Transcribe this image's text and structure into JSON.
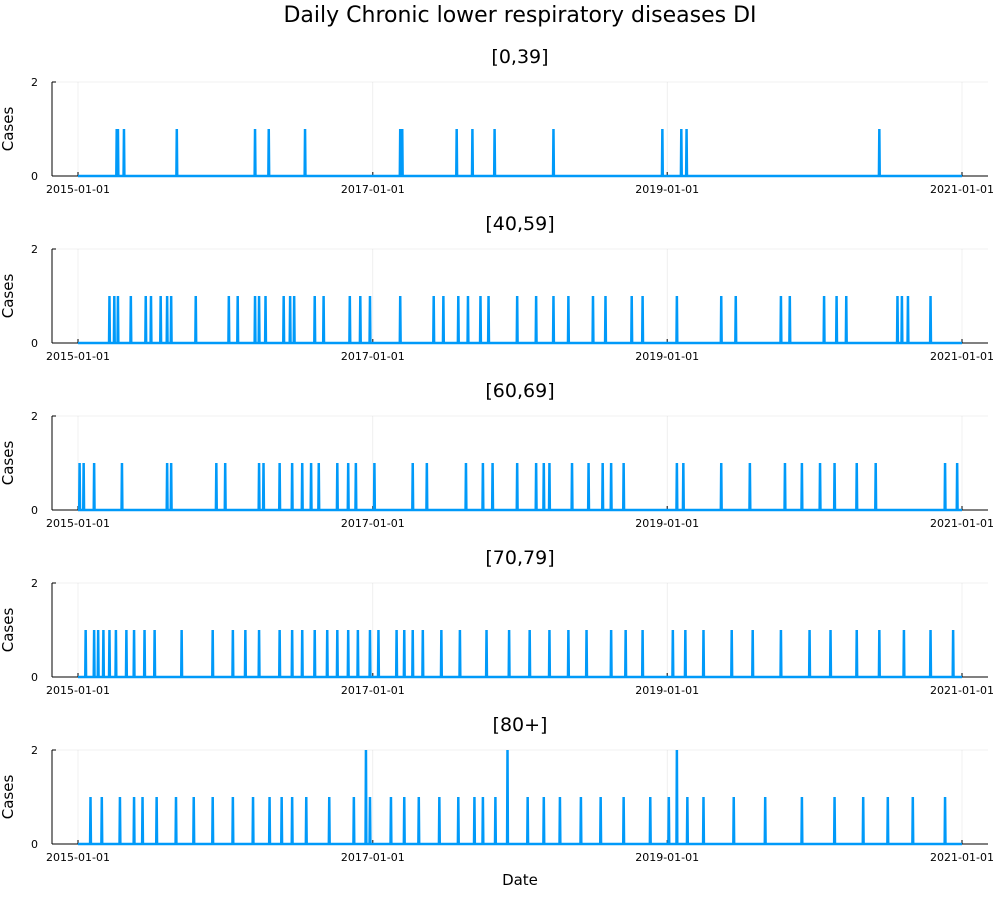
{
  "chart_data": {
    "type": "line",
    "title": "Daily Chronic lower respiratory diseases DI",
    "xlabel": "Date",
    "ylabel": "Cases",
    "x_range": [
      "2015-01-01",
      "2021-01-01"
    ],
    "x_ticks": [
      "2015-01-01",
      "2017-01-01",
      "2019-01-01",
      "2021-01-01"
    ],
    "ylim": [
      0,
      2
    ],
    "y_ticks": [
      0,
      2
    ],
    "grid": true,
    "series_color": "#009af9",
    "panels": [
      {
        "title": "[0,39]",
        "nonzero_days": [
          {
            "date": "2015-04-07",
            "value": 1
          },
          {
            "date": "2015-04-10",
            "value": 1
          },
          {
            "date": "2015-04-25",
            "value": 1
          },
          {
            "date": "2015-09-03",
            "value": 1
          },
          {
            "date": "2016-03-15",
            "value": 1
          },
          {
            "date": "2016-04-18",
            "value": 1
          },
          {
            "date": "2016-07-17",
            "value": 1
          },
          {
            "date": "2017-03-10",
            "value": 1
          },
          {
            "date": "2017-03-15",
            "value": 1
          },
          {
            "date": "2017-07-28",
            "value": 1
          },
          {
            "date": "2017-09-05",
            "value": 1
          },
          {
            "date": "2017-10-30",
            "value": 1
          },
          {
            "date": "2018-03-25",
            "value": 1
          },
          {
            "date": "2018-12-20",
            "value": 1
          },
          {
            "date": "2019-02-05",
            "value": 1
          },
          {
            "date": "2019-02-18",
            "value": 1
          },
          {
            "date": "2020-06-10",
            "value": 1
          }
        ]
      },
      {
        "title": "[40,59]",
        "nonzero_days": [
          {
            "date": "2015-03-20",
            "value": 1
          },
          {
            "date": "2015-04-01",
            "value": 1
          },
          {
            "date": "2015-04-10",
            "value": 1
          },
          {
            "date": "2015-05-12",
            "value": 1
          },
          {
            "date": "2015-06-18",
            "value": 1
          },
          {
            "date": "2015-07-01",
            "value": 1
          },
          {
            "date": "2015-07-25",
            "value": 1
          },
          {
            "date": "2015-08-10",
            "value": 1
          },
          {
            "date": "2015-08-20",
            "value": 1
          },
          {
            "date": "2015-10-20",
            "value": 1
          },
          {
            "date": "2016-01-10",
            "value": 1
          },
          {
            "date": "2016-02-01",
            "value": 1
          },
          {
            "date": "2016-03-15",
            "value": 1
          },
          {
            "date": "2016-03-25",
            "value": 1
          },
          {
            "date": "2016-04-10",
            "value": 1
          },
          {
            "date": "2016-05-25",
            "value": 1
          },
          {
            "date": "2016-06-10",
            "value": 1
          },
          {
            "date": "2016-06-20",
            "value": 1
          },
          {
            "date": "2016-08-10",
            "value": 1
          },
          {
            "date": "2016-09-01",
            "value": 1
          },
          {
            "date": "2016-11-05",
            "value": 1
          },
          {
            "date": "2016-12-01",
            "value": 1
          },
          {
            "date": "2016-12-25",
            "value": 1
          },
          {
            "date": "2017-03-10",
            "value": 1
          },
          {
            "date": "2017-06-01",
            "value": 1
          },
          {
            "date": "2017-06-25",
            "value": 1
          },
          {
            "date": "2017-08-01",
            "value": 1
          },
          {
            "date": "2017-08-25",
            "value": 1
          },
          {
            "date": "2017-09-25",
            "value": 1
          },
          {
            "date": "2017-10-15",
            "value": 1
          },
          {
            "date": "2017-12-25",
            "value": 1
          },
          {
            "date": "2018-02-10",
            "value": 1
          },
          {
            "date": "2018-03-25",
            "value": 1
          },
          {
            "date": "2018-05-01",
            "value": 1
          },
          {
            "date": "2018-07-01",
            "value": 1
          },
          {
            "date": "2018-08-01",
            "value": 1
          },
          {
            "date": "2018-10-05",
            "value": 1
          },
          {
            "date": "2018-11-01",
            "value": 1
          },
          {
            "date": "2019-01-25",
            "value": 1
          },
          {
            "date": "2019-05-15",
            "value": 1
          },
          {
            "date": "2019-06-20",
            "value": 1
          },
          {
            "date": "2019-10-10",
            "value": 1
          },
          {
            "date": "2019-11-01",
            "value": 1
          },
          {
            "date": "2020-01-25",
            "value": 1
          },
          {
            "date": "2020-02-25",
            "value": 1
          },
          {
            "date": "2020-03-20",
            "value": 1
          },
          {
            "date": "2020-07-25",
            "value": 1
          },
          {
            "date": "2020-08-05",
            "value": 1
          },
          {
            "date": "2020-08-20",
            "value": 1
          },
          {
            "date": "2020-10-15",
            "value": 1
          }
        ]
      },
      {
        "title": "[60,69]",
        "nonzero_days": [
          {
            "date": "2015-01-05",
            "value": 1
          },
          {
            "date": "2015-01-15",
            "value": 1
          },
          {
            "date": "2015-02-10",
            "value": 1
          },
          {
            "date": "2015-04-20",
            "value": 1
          },
          {
            "date": "2015-08-10",
            "value": 1
          },
          {
            "date": "2015-08-20",
            "value": 1
          },
          {
            "date": "2015-12-10",
            "value": 1
          },
          {
            "date": "2016-01-01",
            "value": 1
          },
          {
            "date": "2016-03-25",
            "value": 1
          },
          {
            "date": "2016-04-05",
            "value": 1
          },
          {
            "date": "2016-05-15",
            "value": 1
          },
          {
            "date": "2016-06-15",
            "value": 1
          },
          {
            "date": "2016-07-10",
            "value": 1
          },
          {
            "date": "2016-08-01",
            "value": 1
          },
          {
            "date": "2016-08-20",
            "value": 1
          },
          {
            "date": "2016-10-05",
            "value": 1
          },
          {
            "date": "2016-11-01",
            "value": 1
          },
          {
            "date": "2016-11-20",
            "value": 1
          },
          {
            "date": "2017-01-05",
            "value": 1
          },
          {
            "date": "2017-04-10",
            "value": 1
          },
          {
            "date": "2017-05-15",
            "value": 1
          },
          {
            "date": "2017-08-20",
            "value": 1
          },
          {
            "date": "2017-10-01",
            "value": 1
          },
          {
            "date": "2017-10-25",
            "value": 1
          },
          {
            "date": "2017-12-25",
            "value": 1
          },
          {
            "date": "2018-02-10",
            "value": 1
          },
          {
            "date": "2018-03-01",
            "value": 1
          },
          {
            "date": "2018-03-15",
            "value": 1
          },
          {
            "date": "2018-05-10",
            "value": 1
          },
          {
            "date": "2018-06-20",
            "value": 1
          },
          {
            "date": "2018-07-25",
            "value": 1
          },
          {
            "date": "2018-08-15",
            "value": 1
          },
          {
            "date": "2018-09-15",
            "value": 1
          },
          {
            "date": "2019-01-25",
            "value": 1
          },
          {
            "date": "2019-02-10",
            "value": 1
          },
          {
            "date": "2019-05-15",
            "value": 1
          },
          {
            "date": "2019-07-25",
            "value": 1
          },
          {
            "date": "2019-10-20",
            "value": 1
          },
          {
            "date": "2019-12-01",
            "value": 1
          },
          {
            "date": "2020-01-15",
            "value": 1
          },
          {
            "date": "2020-02-20",
            "value": 1
          },
          {
            "date": "2020-04-15",
            "value": 1
          },
          {
            "date": "2020-06-01",
            "value": 1
          },
          {
            "date": "2020-11-20",
            "value": 1
          },
          {
            "date": "2020-12-20",
            "value": 1
          }
        ]
      },
      {
        "title": "[70,79]",
        "nonzero_days": [
          {
            "date": "2015-01-20",
            "value": 1
          },
          {
            "date": "2015-02-10",
            "value": 1
          },
          {
            "date": "2015-02-20",
            "value": 1
          },
          {
            "date": "2015-03-05",
            "value": 1
          },
          {
            "date": "2015-03-20",
            "value": 1
          },
          {
            "date": "2015-04-05",
            "value": 1
          },
          {
            "date": "2015-05-01",
            "value": 1
          },
          {
            "date": "2015-05-20",
            "value": 1
          },
          {
            "date": "2015-06-15",
            "value": 1
          },
          {
            "date": "2015-07-10",
            "value": 1
          },
          {
            "date": "2015-09-15",
            "value": 1
          },
          {
            "date": "2015-12-01",
            "value": 1
          },
          {
            "date": "2016-01-20",
            "value": 1
          },
          {
            "date": "2016-02-20",
            "value": 1
          },
          {
            "date": "2016-03-25",
            "value": 1
          },
          {
            "date": "2016-05-15",
            "value": 1
          },
          {
            "date": "2016-06-15",
            "value": 1
          },
          {
            "date": "2016-07-10",
            "value": 1
          },
          {
            "date": "2016-08-10",
            "value": 1
          },
          {
            "date": "2016-09-10",
            "value": 1
          },
          {
            "date": "2016-10-05",
            "value": 1
          },
          {
            "date": "2016-11-01",
            "value": 1
          },
          {
            "date": "2016-11-25",
            "value": 1
          },
          {
            "date": "2016-12-25",
            "value": 1
          },
          {
            "date": "2017-01-15",
            "value": 1
          },
          {
            "date": "2017-03-01",
            "value": 1
          },
          {
            "date": "2017-03-20",
            "value": 1
          },
          {
            "date": "2017-04-10",
            "value": 1
          },
          {
            "date": "2017-05-05",
            "value": 1
          },
          {
            "date": "2017-06-20",
            "value": 1
          },
          {
            "date": "2017-08-05",
            "value": 1
          },
          {
            "date": "2017-10-10",
            "value": 1
          },
          {
            "date": "2017-12-05",
            "value": 1
          },
          {
            "date": "2018-01-25",
            "value": 1
          },
          {
            "date": "2018-03-15",
            "value": 1
          },
          {
            "date": "2018-05-01",
            "value": 1
          },
          {
            "date": "2018-06-15",
            "value": 1
          },
          {
            "date": "2018-08-15",
            "value": 1
          },
          {
            "date": "2018-09-20",
            "value": 1
          },
          {
            "date": "2018-11-01",
            "value": 1
          },
          {
            "date": "2019-01-15",
            "value": 1
          },
          {
            "date": "2019-02-15",
            "value": 1
          },
          {
            "date": "2019-04-01",
            "value": 1
          },
          {
            "date": "2019-06-10",
            "value": 1
          },
          {
            "date": "2019-08-01",
            "value": 1
          },
          {
            "date": "2019-10-10",
            "value": 1
          },
          {
            "date": "2019-12-20",
            "value": 1
          },
          {
            "date": "2020-02-10",
            "value": 1
          },
          {
            "date": "2020-04-15",
            "value": 1
          },
          {
            "date": "2020-06-10",
            "value": 1
          },
          {
            "date": "2020-08-10",
            "value": 1
          },
          {
            "date": "2020-10-15",
            "value": 1
          },
          {
            "date": "2020-12-10",
            "value": 1
          }
        ]
      },
      {
        "title": "[80+]",
        "nonzero_days": [
          {
            "date": "2015-02-01",
            "value": 1
          },
          {
            "date": "2015-03-01",
            "value": 1
          },
          {
            "date": "2015-04-15",
            "value": 1
          },
          {
            "date": "2015-05-20",
            "value": 1
          },
          {
            "date": "2015-06-10",
            "value": 1
          },
          {
            "date": "2015-07-15",
            "value": 1
          },
          {
            "date": "2015-09-01",
            "value": 1
          },
          {
            "date": "2015-10-15",
            "value": 1
          },
          {
            "date": "2015-12-01",
            "value": 1
          },
          {
            "date": "2016-01-20",
            "value": 1
          },
          {
            "date": "2016-03-10",
            "value": 1
          },
          {
            "date": "2016-04-20",
            "value": 1
          },
          {
            "date": "2016-05-20",
            "value": 1
          },
          {
            "date": "2016-06-15",
            "value": 1
          },
          {
            "date": "2016-07-20",
            "value": 1
          },
          {
            "date": "2016-09-15",
            "value": 1
          },
          {
            "date": "2016-11-15",
            "value": 1
          },
          {
            "date": "2016-12-15",
            "value": 2
          },
          {
            "date": "2016-12-25",
            "value": 1
          },
          {
            "date": "2017-02-15",
            "value": 1
          },
          {
            "date": "2017-03-20",
            "value": 1
          },
          {
            "date": "2017-04-25",
            "value": 1
          },
          {
            "date": "2017-06-15",
            "value": 1
          },
          {
            "date": "2017-08-01",
            "value": 1
          },
          {
            "date": "2017-09-10",
            "value": 1
          },
          {
            "date": "2017-10-01",
            "value": 1
          },
          {
            "date": "2017-11-01",
            "value": 1
          },
          {
            "date": "2017-12-01",
            "value": 2
          },
          {
            "date": "2018-01-20",
            "value": 1
          },
          {
            "date": "2018-03-01",
            "value": 1
          },
          {
            "date": "2018-04-10",
            "value": 1
          },
          {
            "date": "2018-06-01",
            "value": 1
          },
          {
            "date": "2018-07-20",
            "value": 1
          },
          {
            "date": "2018-09-15",
            "value": 1
          },
          {
            "date": "2018-11-20",
            "value": 1
          },
          {
            "date": "2019-01-05",
            "value": 1
          },
          {
            "date": "2019-01-25",
            "value": 2
          },
          {
            "date": "2019-02-20",
            "value": 1
          },
          {
            "date": "2019-04-01",
            "value": 1
          },
          {
            "date": "2019-06-15",
            "value": 1
          },
          {
            "date": "2019-09-01",
            "value": 1
          },
          {
            "date": "2019-12-01",
            "value": 1
          },
          {
            "date": "2020-02-20",
            "value": 1
          },
          {
            "date": "2020-05-01",
            "value": 1
          },
          {
            "date": "2020-07-01",
            "value": 1
          },
          {
            "date": "2020-09-01",
            "value": 1
          },
          {
            "date": "2020-11-20",
            "value": 1
          }
        ]
      }
    ]
  }
}
